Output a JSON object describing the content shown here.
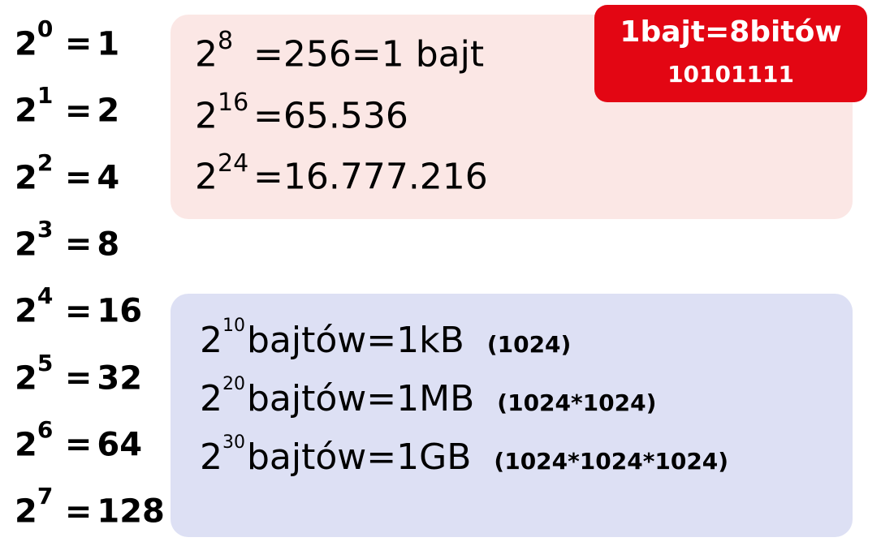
{
  "colors": {
    "pink_bg": "#fbe7e5",
    "blue_bg": "#dde0f4",
    "red_bg": "#e30613",
    "red_text": "#ffffff",
    "body_text": "#000000"
  },
  "left_powers": [
    {
      "base": "2",
      "exp": "0",
      "value": "1"
    },
    {
      "base": "2",
      "exp": "1",
      "value": "2"
    },
    {
      "base": "2",
      "exp": "2",
      "value": "4"
    },
    {
      "base": "2",
      "exp": "3",
      "value": "8"
    },
    {
      "base": "2",
      "exp": "4",
      "value": "16"
    },
    {
      "base": "2",
      "exp": "5",
      "value": "32"
    },
    {
      "base": "2",
      "exp": "6",
      "value": "64"
    },
    {
      "base": "2",
      "exp": "7",
      "value": "128"
    }
  ],
  "pink": {
    "lines": [
      {
        "base": "2",
        "exp": "8",
        "rest": "=256=1 bajt"
      },
      {
        "base": "2",
        "exp": "16",
        "rest": "=65.536"
      },
      {
        "base": "2",
        "exp": "24",
        "rest": "=16.777.216"
      }
    ]
  },
  "blue": {
    "lines": [
      {
        "base": "2",
        "exp": "10",
        "rest": "bajtów=1kB",
        "note": "(1024)"
      },
      {
        "base": "2",
        "exp": "20",
        "rest": "bajtów=1MB",
        "note": "(1024*1024)"
      },
      {
        "base": "2",
        "exp": "30",
        "rest": "bajtów=1GB",
        "note": "(1024*1024*1024)"
      }
    ]
  },
  "red": {
    "line1": "1bajt=8bitów",
    "line2": "10101111"
  }
}
